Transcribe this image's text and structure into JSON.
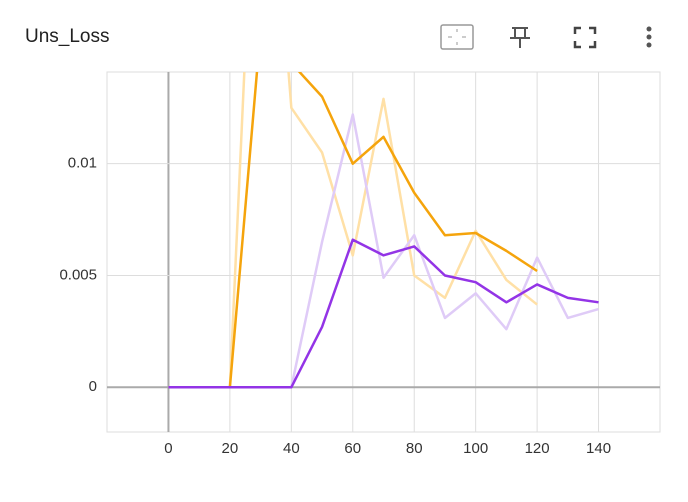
{
  "chart_data": {
    "type": "line",
    "title": "Uns_Loss",
    "xlim": [
      -20,
      160
    ],
    "xticks": [
      0,
      20,
      40,
      60,
      80,
      100,
      120,
      140
    ],
    "ylim": [
      -0.002,
      0.0141
    ],
    "yticks": [
      0,
      0.005,
      0.01
    ],
    "grid": true,
    "series": [
      {
        "color": "#ffe0a6",
        "x": [
          0,
          20,
          30,
          40,
          50,
          60,
          70,
          80,
          90,
          100,
          110,
          120
        ],
        "values": [
          0,
          0,
          0.03,
          0.0125,
          0.0105,
          0.0059,
          0.0129,
          0.005,
          0.004,
          0.007,
          0.0048,
          0.0037
        ]
      },
      {
        "color": "#dfcbf7",
        "x": [
          0,
          20,
          40,
          50,
          60,
          70,
          80,
          90,
          100,
          110,
          120,
          130,
          140
        ],
        "values": [
          0,
          0,
          0,
          0.0065,
          0.0122,
          0.0049,
          0.0068,
          0.0031,
          0.0042,
          0.0026,
          0.0058,
          0.0031,
          0.0035
        ]
      },
      {
        "color": "#f5a40c",
        "x": [
          0,
          20,
          30,
          40,
          50,
          60,
          70,
          80,
          90,
          100,
          110,
          120
        ],
        "values": [
          0,
          0,
          0.016,
          0.0145,
          0.013,
          0.01,
          0.0112,
          0.0087,
          0.0068,
          0.0069,
          0.0061,
          0.0052
        ]
      },
      {
        "color": "#9334e6",
        "x": [
          0,
          20,
          40,
          50,
          60,
          70,
          80,
          90,
          100,
          110,
          120,
          130,
          140
        ],
        "values": [
          0,
          0,
          0,
          0.0027,
          0.0066,
          0.0059,
          0.0063,
          0.005,
          0.0047,
          0.0038,
          0.0046,
          0.004,
          0.0038
        ]
      }
    ]
  }
}
